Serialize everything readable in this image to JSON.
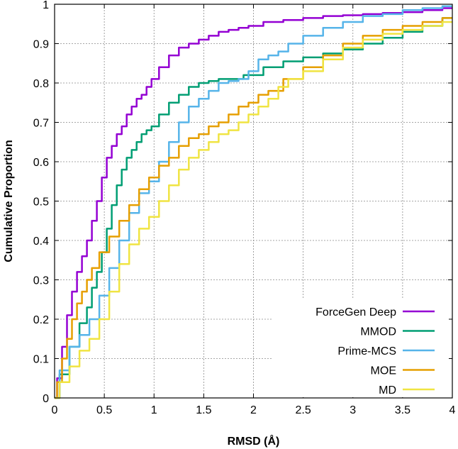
{
  "chart_data": {
    "type": "line",
    "xlabel": "RMSD (Å)",
    "ylabel": "Cumulative Proportion",
    "xlim": [
      0,
      4
    ],
    "ylim": [
      0,
      1
    ],
    "xticks": [
      0,
      0.5,
      1,
      1.5,
      2,
      2.5,
      3,
      3.5,
      4
    ],
    "xtick_labels": [
      "0",
      "0.5",
      "1",
      "1.5",
      "2",
      "2.5",
      "3",
      "3.5",
      "4"
    ],
    "yticks": [
      0,
      0.1,
      0.2,
      0.3,
      0.4,
      0.5,
      0.6,
      0.7,
      0.8,
      0.9,
      1
    ],
    "ytick_labels": [
      "0",
      "0.1",
      "0.2",
      "0.3",
      "0.4",
      "0.5",
      "0.6",
      "0.7",
      "0.8",
      "0.9",
      "1"
    ],
    "grid": true,
    "legend_position": "bottom-right",
    "series": [
      {
        "name": "ForceGen Deep",
        "color": "#9400d3",
        "x": [
          0,
          0.05,
          0.1,
          0.15,
          0.2,
          0.25,
          0.3,
          0.35,
          0.4,
          0.45,
          0.5,
          0.55,
          0.6,
          0.65,
          0.7,
          0.75,
          0.8,
          0.85,
          0.9,
          0.95,
          1.0,
          1.1,
          1.2,
          1.3,
          1.4,
          1.5,
          1.6,
          1.7,
          1.8,
          1.9,
          2.0,
          2.2,
          2.4,
          2.6,
          2.8,
          3.0,
          3.2,
          3.4,
          3.6,
          3.8,
          4.0
        ],
        "y": [
          0,
          0.05,
          0.13,
          0.21,
          0.27,
          0.32,
          0.36,
          0.4,
          0.45,
          0.5,
          0.56,
          0.61,
          0.64,
          0.67,
          0.69,
          0.72,
          0.74,
          0.76,
          0.77,
          0.79,
          0.81,
          0.84,
          0.87,
          0.89,
          0.9,
          0.91,
          0.92,
          0.93,
          0.935,
          0.94,
          0.945,
          0.955,
          0.96,
          0.965,
          0.97,
          0.972,
          0.975,
          0.978,
          0.98,
          0.985,
          0.99
        ]
      },
      {
        "name": "MMOD",
        "color": "#009e73",
        "x": [
          0,
          0.1,
          0.2,
          0.3,
          0.35,
          0.4,
          0.45,
          0.5,
          0.55,
          0.6,
          0.65,
          0.7,
          0.75,
          0.8,
          0.85,
          0.9,
          0.95,
          1.0,
          1.1,
          1.2,
          1.3,
          1.4,
          1.5,
          1.6,
          1.7,
          1.8,
          2.0,
          2.2,
          2.4,
          2.6,
          2.8,
          3.0,
          3.2,
          3.4,
          3.6,
          3.8,
          4.0
        ],
        "y": [
          0,
          0.06,
          0.13,
          0.19,
          0.23,
          0.28,
          0.32,
          0.37,
          0.43,
          0.49,
          0.54,
          0.58,
          0.61,
          0.63,
          0.65,
          0.67,
          0.68,
          0.69,
          0.72,
          0.75,
          0.77,
          0.79,
          0.8,
          0.805,
          0.81,
          0.81,
          0.82,
          0.84,
          0.855,
          0.865,
          0.875,
          0.885,
          0.9,
          0.915,
          0.93,
          0.945,
          0.965
        ]
      },
      {
        "name": "Prime-MCS",
        "color": "#56b4e9",
        "x": [
          0,
          0.1,
          0.2,
          0.3,
          0.4,
          0.5,
          0.6,
          0.7,
          0.8,
          0.9,
          1.0,
          1.1,
          1.2,
          1.3,
          1.4,
          1.5,
          1.6,
          1.7,
          1.8,
          1.9,
          2.0,
          2.1,
          2.2,
          2.3,
          2.4,
          2.6,
          2.8,
          3.0,
          3.2,
          3.4,
          3.6,
          3.8,
          4.0
        ],
        "y": [
          0,
          0.07,
          0.13,
          0.16,
          0.2,
          0.26,
          0.33,
          0.4,
          0.47,
          0.52,
          0.55,
          0.6,
          0.65,
          0.7,
          0.74,
          0.76,
          0.78,
          0.8,
          0.805,
          0.81,
          0.83,
          0.86,
          0.87,
          0.88,
          0.9,
          0.92,
          0.94,
          0.955,
          0.97,
          0.975,
          0.985,
          0.99,
          0.995
        ]
      },
      {
        "name": "MOE",
        "color": "#e69f00",
        "x": [
          0,
          0.05,
          0.1,
          0.15,
          0.2,
          0.25,
          0.3,
          0.35,
          0.4,
          0.5,
          0.6,
          0.7,
          0.8,
          0.9,
          1.0,
          1.1,
          1.2,
          1.3,
          1.4,
          1.5,
          1.6,
          1.7,
          1.8,
          1.9,
          2.0,
          2.1,
          2.2,
          2.4,
          2.6,
          2.8,
          3.0,
          3.2,
          3.4,
          3.6,
          3.8,
          4.0
        ],
        "y": [
          0,
          0.04,
          0.1,
          0.15,
          0.2,
          0.24,
          0.27,
          0.3,
          0.33,
          0.37,
          0.41,
          0.45,
          0.49,
          0.53,
          0.56,
          0.59,
          0.61,
          0.64,
          0.66,
          0.67,
          0.69,
          0.7,
          0.72,
          0.74,
          0.75,
          0.77,
          0.78,
          0.81,
          0.84,
          0.87,
          0.9,
          0.92,
          0.935,
          0.945,
          0.955,
          0.965
        ]
      },
      {
        "name": "MD",
        "color": "#f0e442",
        "x": [
          0,
          0.1,
          0.2,
          0.3,
          0.4,
          0.5,
          0.6,
          0.7,
          0.8,
          0.9,
          1.0,
          1.1,
          1.2,
          1.3,
          1.4,
          1.5,
          1.6,
          1.7,
          1.8,
          1.9,
          2.0,
          2.1,
          2.2,
          2.3,
          2.4,
          2.6,
          2.8,
          3.0,
          3.2,
          3.4,
          3.6,
          3.8,
          4.0
        ],
        "y": [
          0,
          0.04,
          0.08,
          0.12,
          0.15,
          0.2,
          0.27,
          0.34,
          0.39,
          0.43,
          0.46,
          0.5,
          0.54,
          0.58,
          0.61,
          0.63,
          0.65,
          0.67,
          0.68,
          0.7,
          0.72,
          0.74,
          0.76,
          0.79,
          0.81,
          0.83,
          0.86,
          0.89,
          0.91,
          0.925,
          0.935,
          0.945,
          0.955
        ]
      }
    ]
  }
}
